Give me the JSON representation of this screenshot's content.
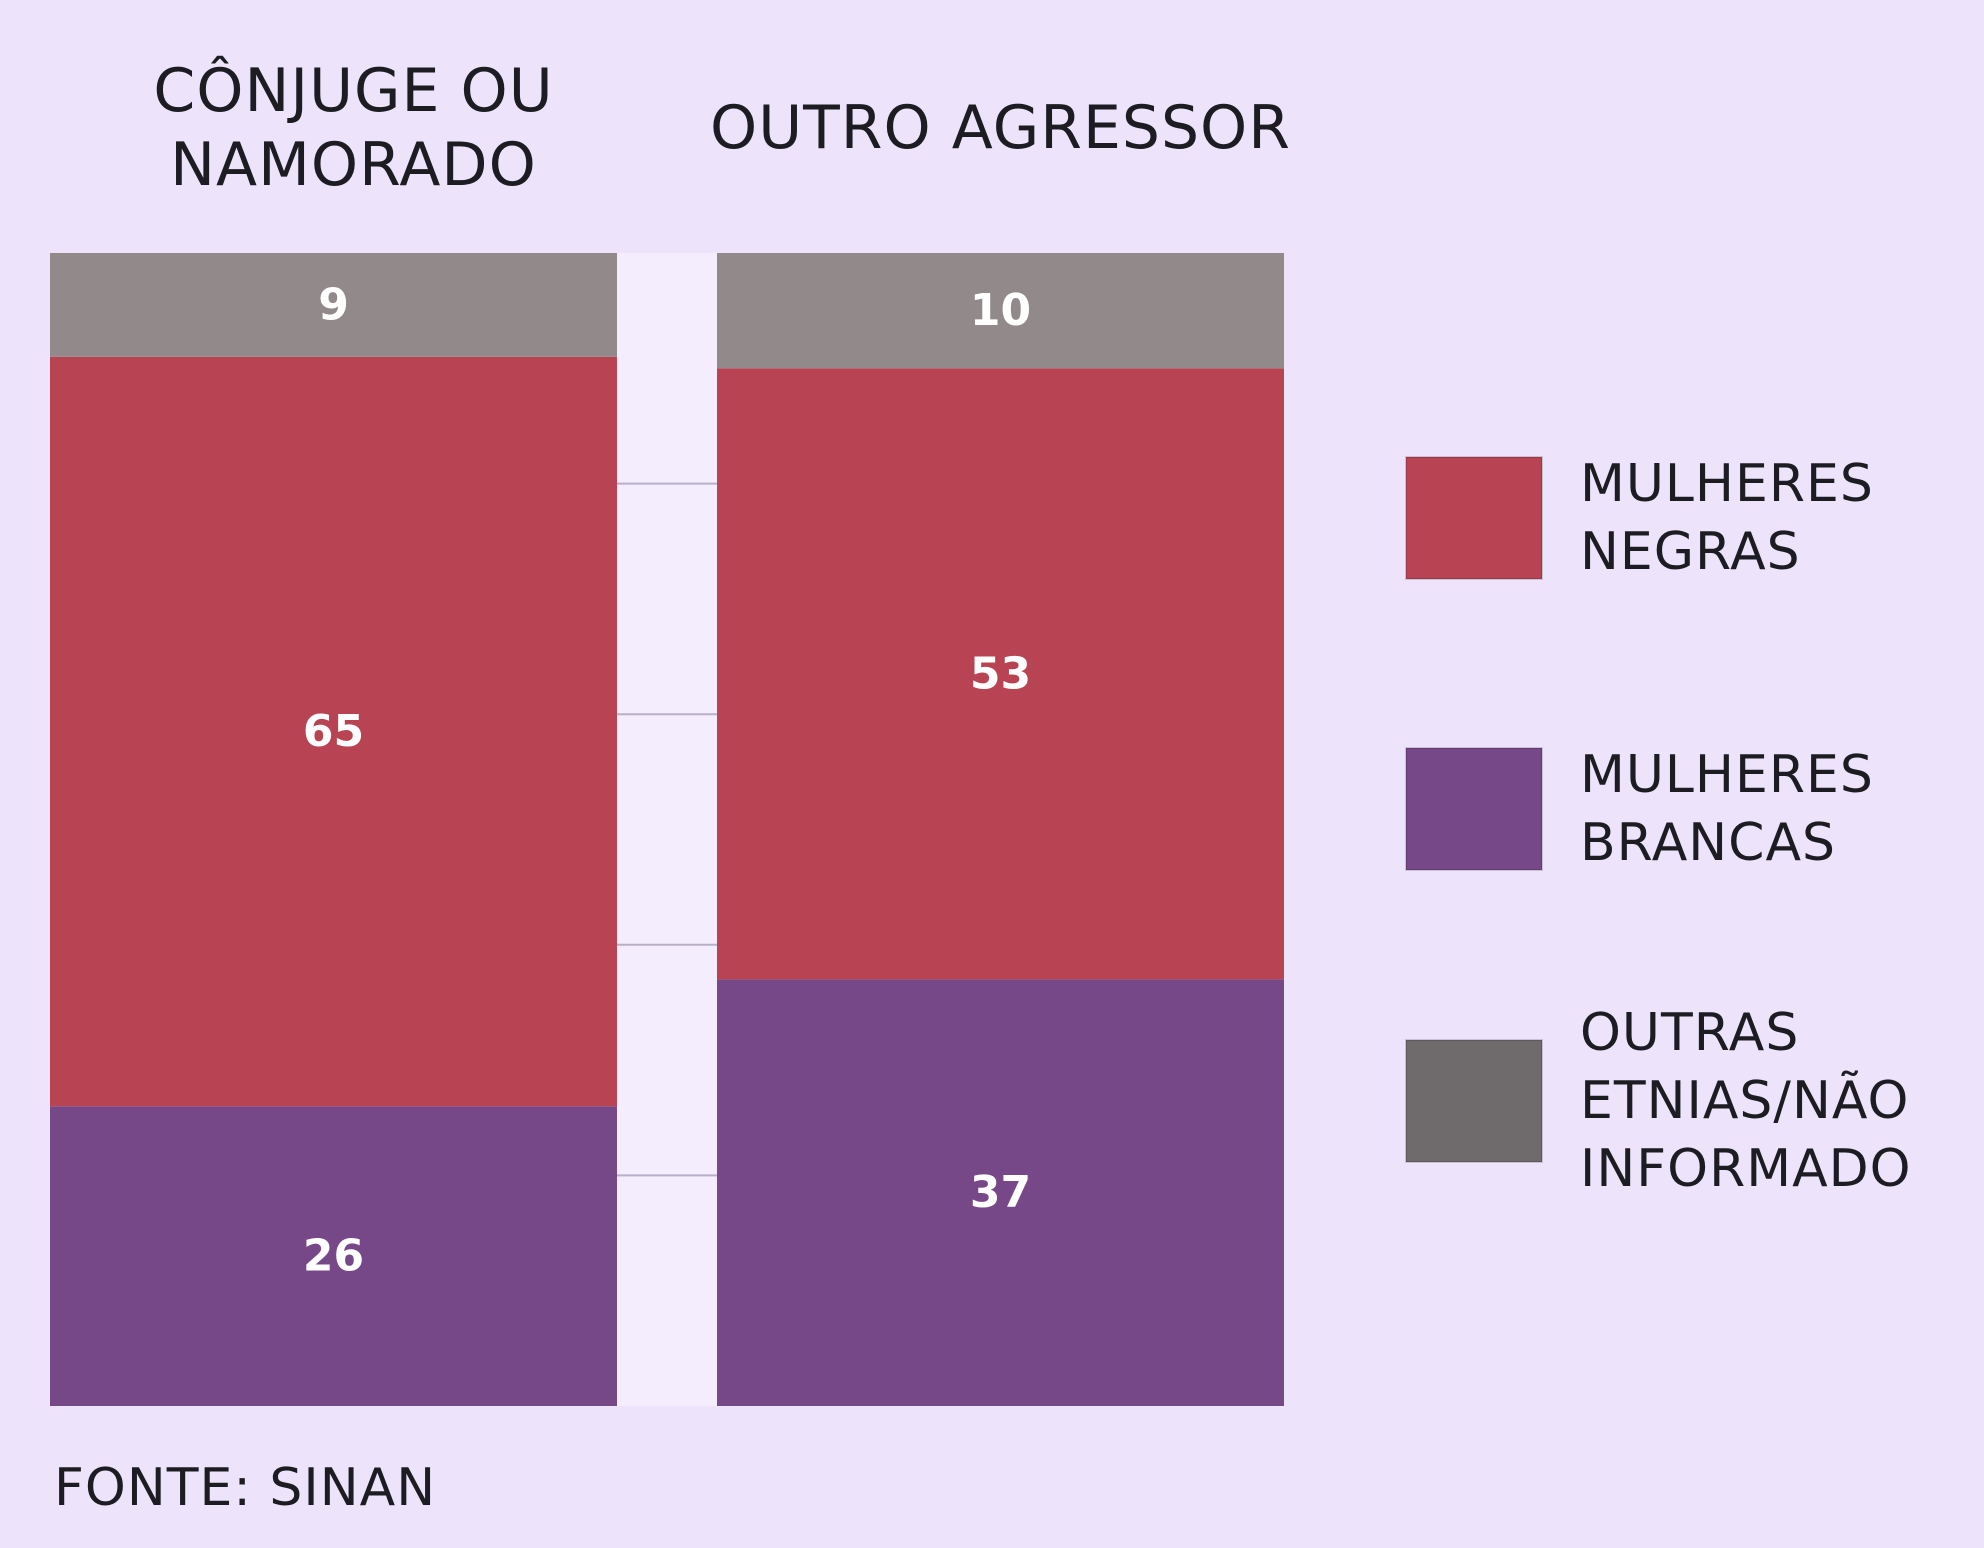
{
  "chart_data": {
    "type": "bar",
    "stacked": true,
    "categories": [
      [
        "CÔNJUGE OU",
        "NAMORADO"
      ],
      [
        "OUTRO AGRESSOR"
      ]
    ],
    "series": [
      {
        "name": [
          "MULHERES",
          "BRANCAS"
        ],
        "values": [
          26,
          37
        ],
        "color": "#774888"
      },
      {
        "name": [
          "MULHERES",
          "NEGRAS"
        ],
        "values": [
          65,
          53
        ],
        "color": "#b84453"
      },
      {
        "name": [
          "OUTRAS",
          "ETNIAS/NÃO",
          "INFORMADO"
        ],
        "values": [
          9,
          10
        ],
        "color": "#928a8a"
      }
    ],
    "ylim": [
      0,
      100
    ],
    "grid": true,
    "legend_position": "right",
    "data_labels": true
  },
  "source": "FONTE: SINAN",
  "colors": {
    "background": "#ede4fb",
    "gridline": "#b9b0c8",
    "text": "#1c1c22",
    "label": "#ffffff",
    "legend_gray": "#6f6a6b"
  }
}
